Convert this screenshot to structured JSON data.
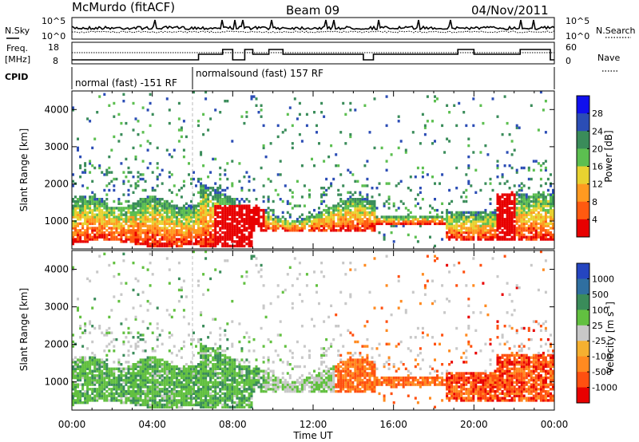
{
  "header": {
    "station": "McMurdo (fitACF)",
    "beam": "Beam 09",
    "date": "04/Nov/2011"
  },
  "noise_panel": {
    "left_label": "N.Sky",
    "right_label": "N.Search",
    "ticks_left": [
      "10^5",
      "10^0"
    ],
    "ticks_right": [
      "10^5",
      "10^0"
    ]
  },
  "freq_panel": {
    "left_label_1": "Freq.",
    "left_label_2": "[MHz]",
    "right_label": "Nave",
    "ticks_left": [
      "18",
      "8"
    ],
    "ticks_right": [
      "60",
      "0"
    ]
  },
  "cpid_panel": {
    "label": "CPID",
    "segments": [
      "normal (fast) -151 RF",
      "normalsound (fast) 157 RF"
    ]
  },
  "power_colorbar": {
    "label": "Power [dB]",
    "ticks": [
      "28",
      "24",
      "20",
      "16",
      "12",
      "8",
      "4"
    ],
    "colors": [
      "#1010ee",
      "#2b4db5",
      "#3a8c5a",
      "#5cbf50",
      "#e8d230",
      "#ff9a20",
      "#ff5a10",
      "#e80000"
    ]
  },
  "velocity_colorbar": {
    "label_main": "Velocity [m s",
    "label_sup": "-1",
    "label_end": "]",
    "ticks": [
      "1000",
      "500",
      "100",
      "25",
      "-25",
      "-100",
      "-500",
      "-1000"
    ],
    "colors": [
      "#2545c0",
      "#2f6fa0",
      "#3a8c5a",
      "#62c040",
      "#c8c8c8",
      "#f5b030",
      "#ff8a20",
      "#ff5010",
      "#e80000"
    ]
  },
  "chart_data": [
    {
      "type": "heatmap",
      "name": "power",
      "ylabel": "Slant Range [km]",
      "yticks": [
        1000,
        2000,
        3000,
        4000
      ],
      "ylim": [
        250,
        4500
      ],
      "xlim": [
        0,
        24
      ],
      "xticks": [
        "00:00",
        "04:00",
        "08:00",
        "12:00",
        "16:00",
        "20:00",
        "00:00"
      ],
      "xlabel": "Time UT",
      "clim": [
        0,
        30
      ]
    },
    {
      "type": "heatmap",
      "name": "velocity",
      "ylabel": "Slant Range [km]",
      "yticks": [
        1000,
        2000,
        3000,
        4000
      ],
      "ylim": [
        250,
        4500
      ],
      "xlim": [
        0,
        24
      ],
      "xticks": [
        "00:00",
        "04:00",
        "08:00",
        "12:00",
        "16:00",
        "20:00",
        "00:00"
      ],
      "xlabel": "Time UT",
      "clim": [
        -1000,
        1000
      ]
    }
  ]
}
